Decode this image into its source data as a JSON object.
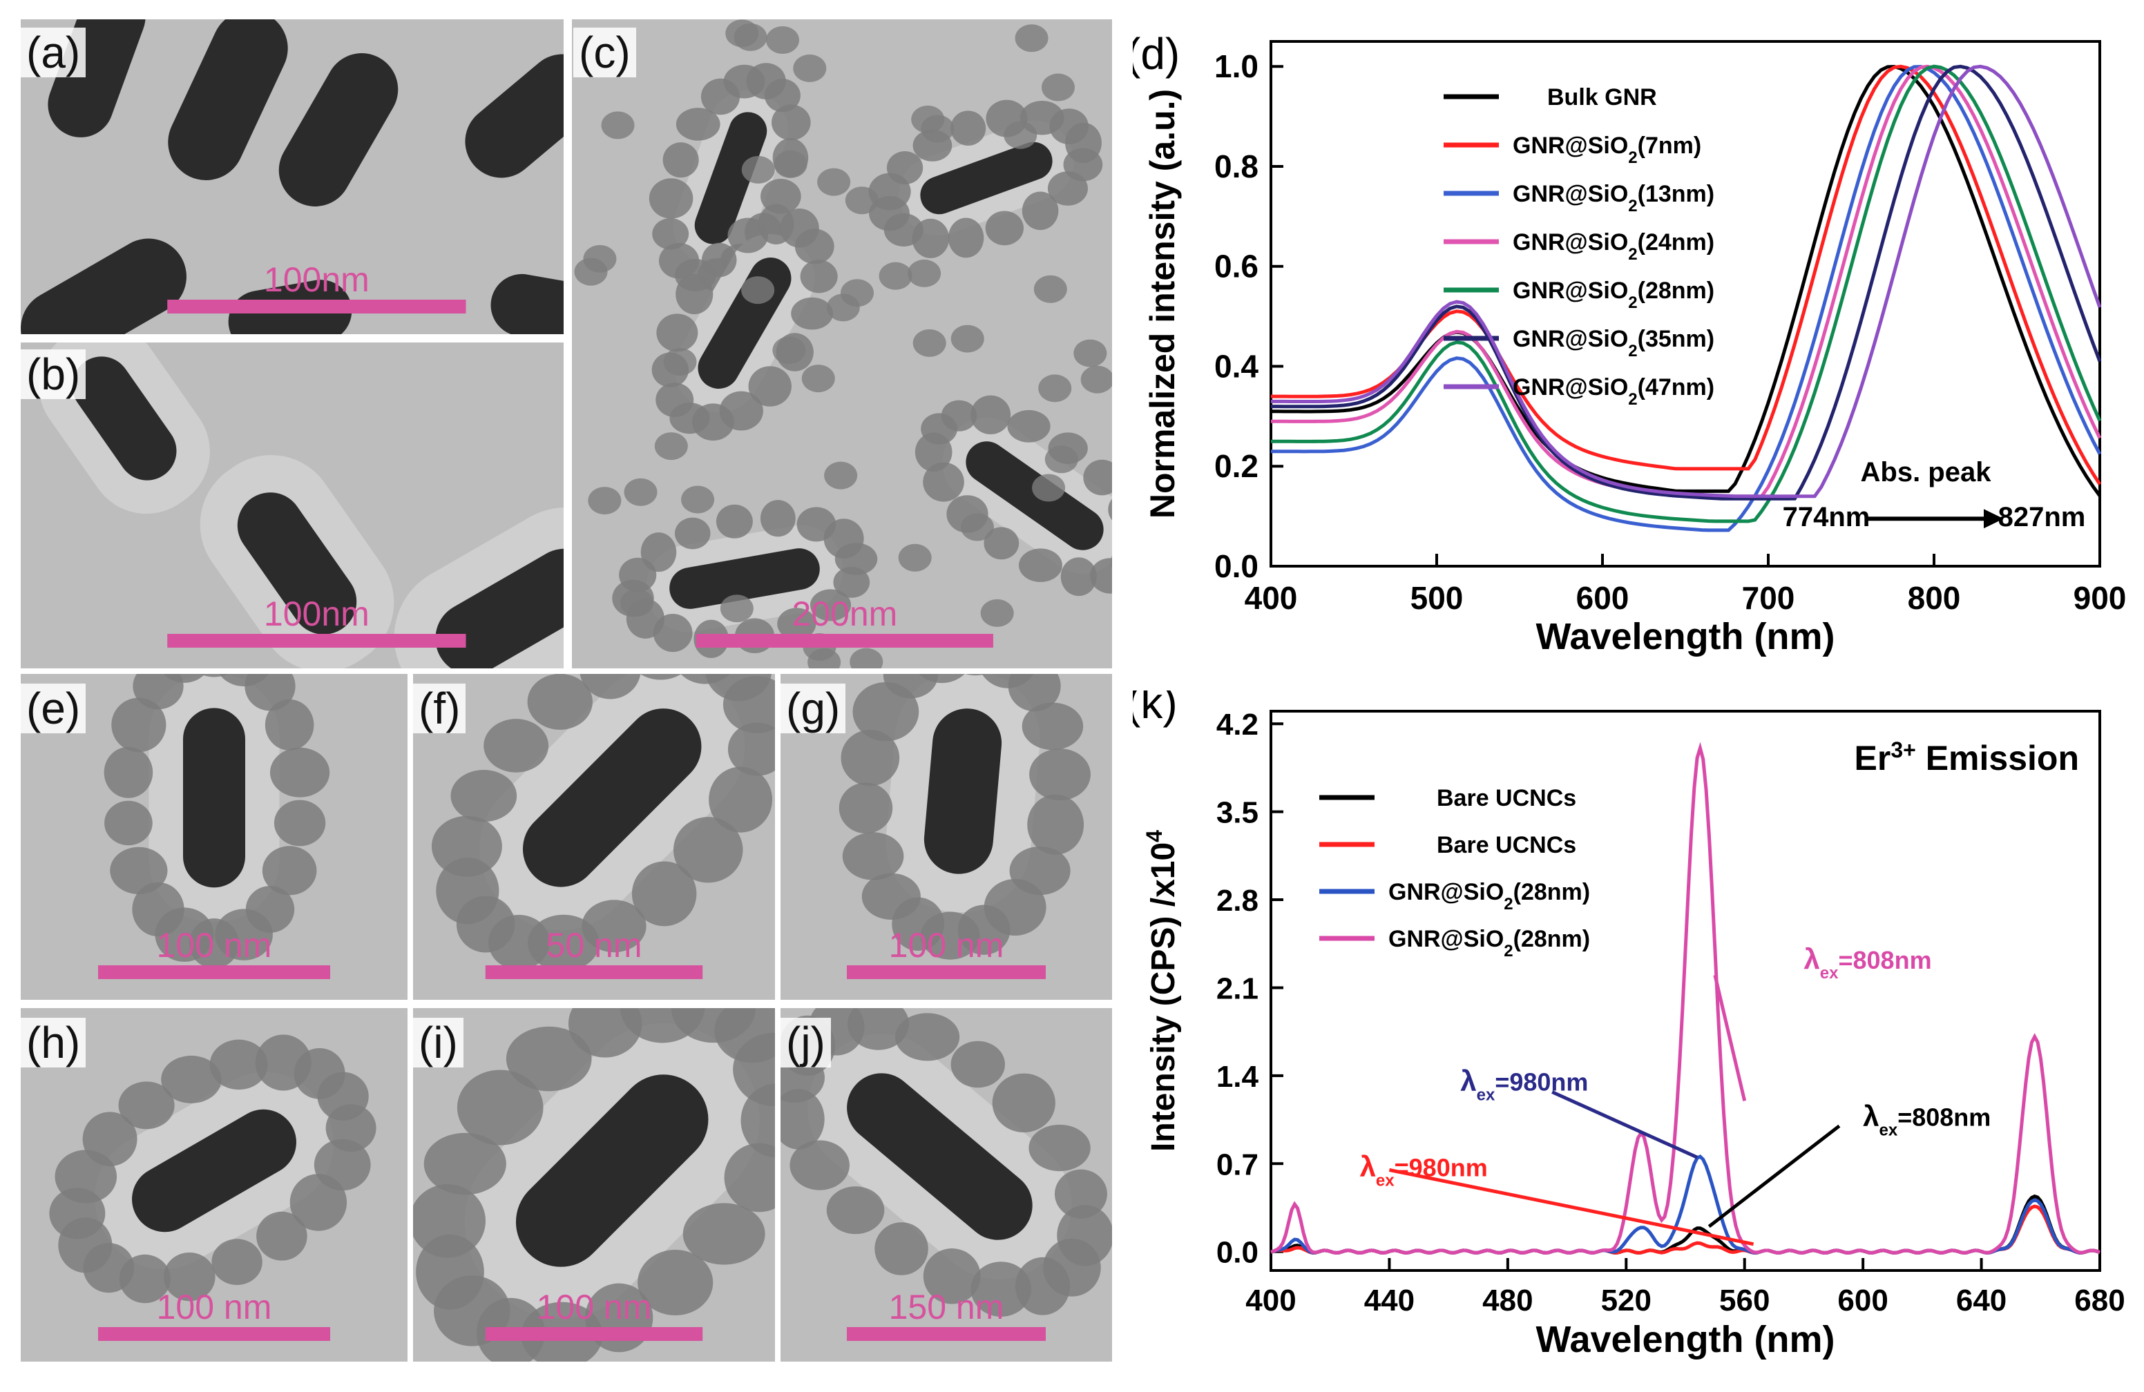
{
  "figure": {
    "panels": [
      {
        "id": "a",
        "label": "(a)",
        "scale": "100nm",
        "kind": "bare"
      },
      {
        "id": "b",
        "label": "(b)",
        "scale": "100nm",
        "kind": "thin"
      },
      {
        "id": "c",
        "label": "(c)",
        "scale": "200nm",
        "kind": "field"
      },
      {
        "id": "e",
        "label": "(e)",
        "scale": "100 nm",
        "kind": "single"
      },
      {
        "id": "f",
        "label": "(f)",
        "scale": "50 nm",
        "kind": "single"
      },
      {
        "id": "g",
        "label": "(g)",
        "scale": "100 nm",
        "kind": "single"
      },
      {
        "id": "h",
        "label": "(h)",
        "scale": "100 nm",
        "kind": "single"
      },
      {
        "id": "i",
        "label": "(i)",
        "scale": "100 nm",
        "kind": "single"
      },
      {
        "id": "j",
        "label": "(j)",
        "scale": "150 nm",
        "kind": "single"
      }
    ],
    "scalebar_color": "#d6529e",
    "tem_background": "#bdbdbd",
    "rod_color": "#2b2b2b",
    "ucnc_color": "#7d7d7d"
  },
  "chart_data": [
    {
      "id": "d",
      "panel_label": "(d)",
      "type": "line",
      "xlabel": "Wavelength (nm)",
      "ylabel": "Normalized intensity (a.u.)",
      "xlim": [
        400,
        900
      ],
      "ylim": [
        0,
        1.05
      ],
      "xticks": [
        "400",
        "500",
        "600",
        "700",
        "800",
        "900"
      ],
      "yticks": [
        "0.0",
        "0.2",
        "0.4",
        "0.6",
        "0.8",
        "1.0"
      ],
      "ytick_values": [
        0,
        0.2,
        0.4,
        0.6,
        0.8,
        1.0
      ],
      "xtick_values": [
        400,
        500,
        600,
        700,
        800,
        900
      ],
      "annotation": {
        "title": "Abs. peak",
        "from": "774nm",
        "to": "827nm"
      },
      "series": [
        {
          "name": "Bulk GNR",
          "color": "#000000",
          "peak": 774,
          "dip": 640,
          "dipv": 0.15,
          "base": 0.31,
          "p1": 0.33
        },
        {
          "name": "GNR@SiO2(7nm)",
          "label_main": "GNR@SiO",
          "label_sub": "2",
          "label_tail": "(7nm)",
          "color": "#ff2020",
          "peak": 779,
          "dip": 625,
          "dipv": 0.195,
          "base": 0.34,
          "p1": 0.385
        },
        {
          "name": "GNR@SiO2(13nm)",
          "label_main": "GNR@SiO",
          "label_sub": "2",
          "label_tail": "(13nm)",
          "color": "#3a5fd0",
          "peak": 790,
          "dip": 652,
          "dipv": 0.072,
          "base": 0.23,
          "p1": 0.28
        },
        {
          "name": "GNR@SiO2(24nm)",
          "label_main": "GNR@SiO",
          "label_sub": "2",
          "label_tail": "(24nm)",
          "color": "#e055b0",
          "peak": 795,
          "dip": 650,
          "dipv": 0.14,
          "base": 0.29,
          "p1": 0.34
        },
        {
          "name": "GNR@SiO2(28nm)",
          "label_main": "GNR@SiO",
          "label_sub": "2",
          "label_tail": "(28nm)",
          "color": "#108a50",
          "peak": 800,
          "dip": 652,
          "dipv": 0.09,
          "base": 0.25,
          "p1": 0.31
        },
        {
          "name": "GNR@SiO2(35nm)",
          "label_main": "GNR@SiO",
          "label_sub": "2",
          "label_tail": "(35nm)",
          "color": "#23236e",
          "peak": 815,
          "dip": 665,
          "dipv": 0.135,
          "base": 0.32,
          "p1": 0.36
        },
        {
          "name": "GNR@SiO2(47nm)",
          "label_main": "GNR@SiO",
          "label_sub": "2",
          "label_tail": "(47nm)",
          "color": "#8d4fc4",
          "peak": 827,
          "dip": 672,
          "dipv": 0.14,
          "base": 0.33,
          "p1": 0.365
        }
      ]
    },
    {
      "id": "k",
      "panel_label": "(k)",
      "type": "line",
      "title_main": "Er",
      "title_sup": "3+",
      "title_tail": " Emission",
      "xlabel": "Wavelength (nm)",
      "ylabel_main": "Intensity (CPS) /x10",
      "ylabel_sup": "4",
      "xlim": [
        400,
        680
      ],
      "ylim": [
        -0.15,
        4.3
      ],
      "xticks": [
        "400",
        "440",
        "480",
        "520",
        "560",
        "600",
        "640",
        "680"
      ],
      "xtick_values": [
        400,
        440,
        480,
        520,
        560,
        600,
        640,
        680
      ],
      "yticks": [
        "0.0",
        "0.7",
        "1.4",
        "2.1",
        "2.8",
        "3.5",
        "4.2"
      ],
      "ytick_values": [
        0,
        0.7,
        1.4,
        2.1,
        2.8,
        3.5,
        4.2
      ],
      "series": [
        {
          "name": "Bare UCNCs",
          "color": "#000000",
          "legend": "Bare UCNCs",
          "peaks": [
            [
              408,
              0.05
            ],
            [
              545,
              0.18
            ],
            [
              658,
              0.45
            ]
          ]
        },
        {
          "name": "Bare UCNCs",
          "color": "#ff2020",
          "legend": "Bare UCNCs",
          "peaks": [
            [
              408,
              0.03
            ],
            [
              545,
              0.06
            ],
            [
              658,
              0.37
            ]
          ]
        },
        {
          "name": "GNR@SiO2(28nm)",
          "color": "#2a54c4",
          "legend_main": "GNR@SiO",
          "legend_sub": "2",
          "legend_tail": "(28nm)",
          "peaks": [
            [
              408,
              0.1
            ],
            [
              525,
              0.2
            ],
            [
              545,
              0.75
            ],
            [
              658,
              0.42
            ]
          ]
        },
        {
          "name": "GNR@SiO2(28nm)",
          "color": "#d94aa8",
          "legend_main": "GNR@SiO",
          "legend_sub": "2",
          "legend_tail": "(28nm)",
          "peaks": [
            [
              408,
              0.38
            ],
            [
              525,
              0.95
            ],
            [
              545,
              4.0
            ],
            [
              658,
              1.72
            ]
          ]
        }
      ],
      "annotations": [
        {
          "main": "λ",
          "sub": "ex",
          "tail": "=808nm",
          "color": "#d94aa8"
        },
        {
          "main": "λ",
          "sub": "ex",
          "tail": "=980nm",
          "color": "#2a2a8a"
        },
        {
          "main": "λ",
          "sub": "ex",
          "tail": "=808nm",
          "color": "#000000"
        },
        {
          "main": "λ",
          "sub": "ex",
          "tail": "=980nm",
          "color": "#ff2020"
        }
      ]
    }
  ]
}
